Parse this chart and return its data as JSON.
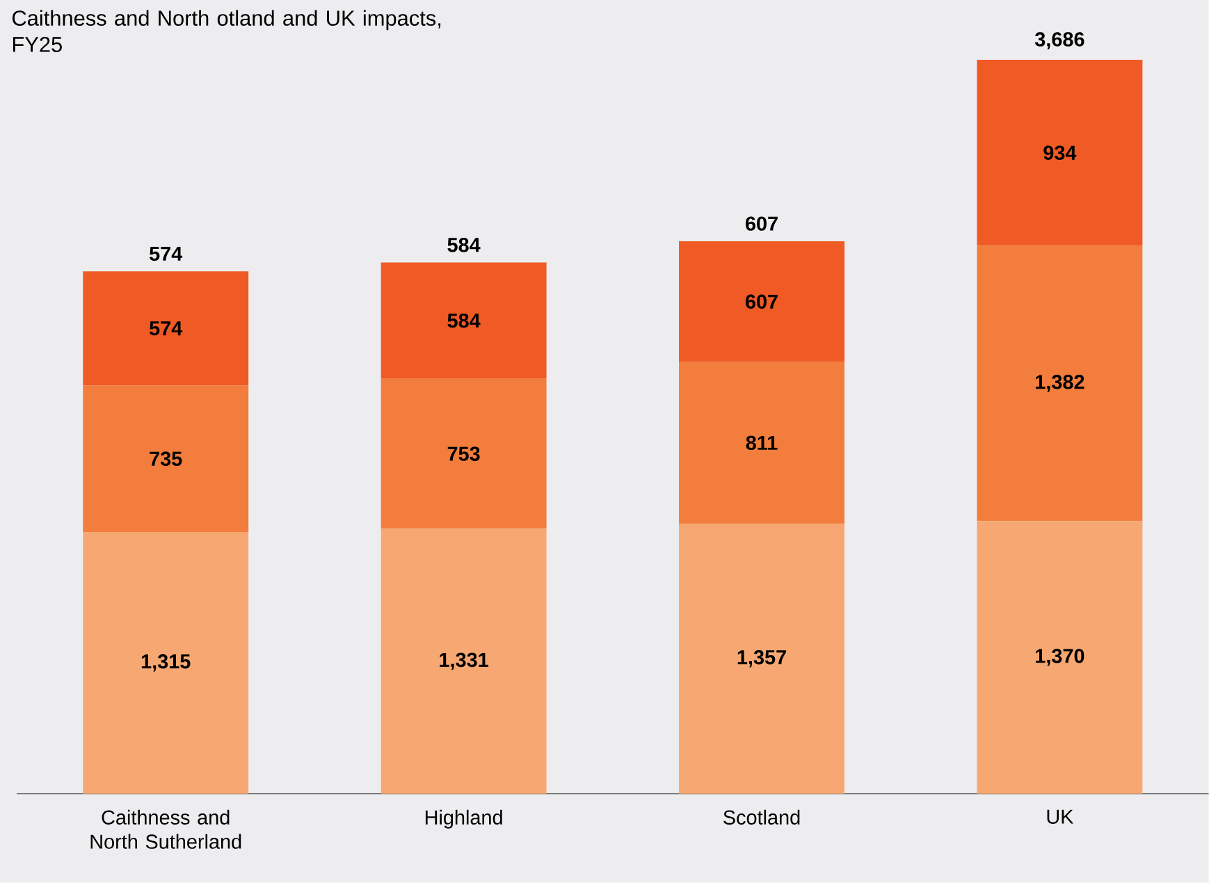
{
  "chart_data": {
    "type": "bar",
    "stacked": true,
    "data_labels": true,
    "title": "Caithness and North otland and UK impacts, FY25",
    "categories": [
      "Caithness and North Sutherland",
      "Highland",
      "Scotland",
      "UK"
    ],
    "series": [
      {
        "color": "#f7a872",
        "values": [
          1315,
          1331,
          1357,
          1370
        ],
        "value_labels": [
          "1,315",
          "1,331",
          "1,357",
          "1,370"
        ]
      },
      {
        "color": "#f27d3c",
        "values": [
          735,
          753,
          811,
          1382
        ],
        "value_labels": [
          "735",
          "753",
          "811",
          "1,382"
        ]
      },
      {
        "color": "#f05a24",
        "values": [
          574,
          584,
          607,
          934
        ]
      }
    ],
    "annotations": [
      {
        "text": "574",
        "x": "Caithness and North Sutherland",
        "y": 2624
      },
      {
        "text": "584",
        "x": "Highland",
        "y": 2668
      },
      {
        "text": "607",
        "x": "Scotland",
        "y": 2775
      },
      {
        "text": "3,686",
        "x": "UK",
        "y": 3686
      }
    ]
  }
}
